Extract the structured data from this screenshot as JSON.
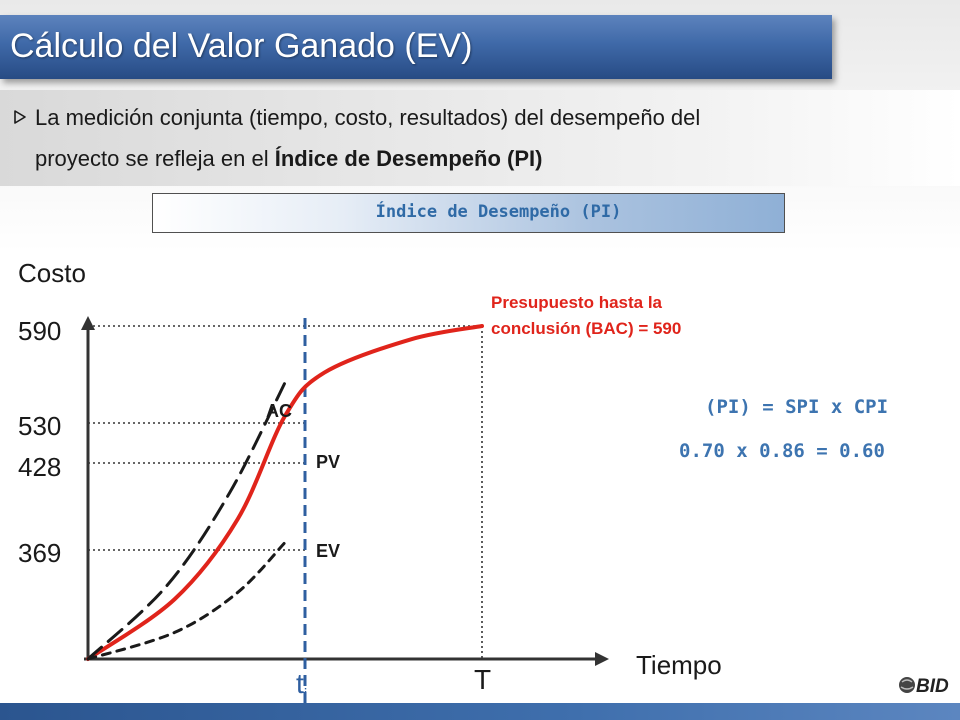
{
  "title": "Cálculo del Valor Ganado (EV)",
  "bullet": {
    "line1": "La medición conjunta (tiempo, costo, resultados) del desempeño del",
    "line2_prefix": "proyecto se refleja en el ",
    "line2_bold": "Índice de Desempeño (PI)"
  },
  "pi_box_label": "Índice de Desempeño  (PI)",
  "formula": {
    "line1": "(PI) = SPI x CPI",
    "line2": "0.70 x 0.86 = 0.60"
  },
  "bac_note": {
    "line1": "Presupuesto hasta la",
    "line2": "conclusión (BAC) = 590"
  },
  "logo_text": "BID",
  "colors": {
    "title_bar": "#3f69a8",
    "pv_curve": "#e0241b",
    "ti_line": "#2f5fa0",
    "formula": "#3d74b0",
    "bac_note": "#e0241b"
  },
  "chart_data": {
    "type": "line",
    "ylabel": "Costo",
    "xlabel": "Tiempo",
    "y_ticks": [
      "590",
      "530",
      "428",
      "369"
    ],
    "y_tick_values": [
      590,
      530,
      428,
      369
    ],
    "x_markers": [
      {
        "label_main": "t",
        "label_sub": "i",
        "role": "status date"
      },
      {
        "label_main": "T",
        "label_sub": "",
        "role": "completion"
      }
    ],
    "series": [
      {
        "name": "PV",
        "style": "solid",
        "color": "#e0241b",
        "points": [
          [
            0,
            0
          ],
          [
            0.22,
            0.18
          ],
          [
            0.38,
            0.42
          ],
          [
            0.5,
            0.73
          ],
          [
            0.6,
            0.86
          ],
          [
            0.82,
            0.96
          ],
          [
            1.0,
            1.0
          ]
        ]
      },
      {
        "name": "AC",
        "style": "long-dash",
        "color": "#1a1a1a",
        "points": [
          [
            0,
            0
          ],
          [
            0.2,
            0.22
          ],
          [
            0.36,
            0.5
          ],
          [
            0.5,
            0.83
          ]
        ]
      },
      {
        "name": "EV",
        "style": "short-dash",
        "color": "#1a1a1a",
        "points": [
          [
            0,
            0
          ],
          [
            0.22,
            0.08
          ],
          [
            0.38,
            0.2
          ],
          [
            0.5,
            0.35
          ]
        ]
      }
    ],
    "annotations": [
      "Presupuesto hasta la conclusión (BAC) = 590"
    ]
  }
}
